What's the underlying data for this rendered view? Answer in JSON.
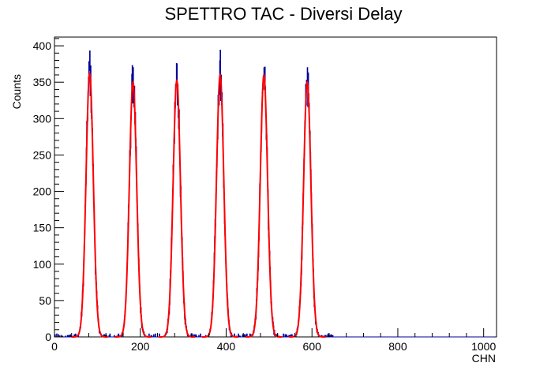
{
  "chart_data": {
    "type": "line",
    "title": "SPETTRO TAC - Diversi Delay",
    "xlabel": "CHN",
    "ylabel": "Counts",
    "xlim": [
      0,
      1030
    ],
    "ylim": [
      0,
      412
    ],
    "x_ticks": [
      0,
      200,
      400,
      600,
      800,
      1000
    ],
    "y_ticks": [
      0,
      50,
      100,
      150,
      200,
      250,
      300,
      350,
      400
    ],
    "grid": false,
    "legend": "none",
    "series": [
      {
        "style": "histogram",
        "color": "#000099",
        "peaks": [
          {
            "center": 82,
            "max": 393
          },
          {
            "center": 183,
            "max": 370
          },
          {
            "center": 285,
            "max": 375
          },
          {
            "center": 386,
            "max": 394
          },
          {
            "center": 488,
            "max": 370
          },
          {
            "center": 589,
            "max": 370
          }
        ]
      },
      {
        "style": "fit",
        "color": "#ff0000",
        "peaks": [
          {
            "center": 82,
            "amplitude": 362,
            "sigma": 8.5
          },
          {
            "center": 183,
            "amplitude": 350,
            "sigma": 8.5
          },
          {
            "center": 285,
            "amplitude": 352,
            "sigma": 8.5
          },
          {
            "center": 386,
            "amplitude": 360,
            "sigma": 8.5
          },
          {
            "center": 488,
            "amplitude": 360,
            "sigma": 8.5
          },
          {
            "center": 589,
            "amplitude": 350,
            "sigma": 8.5
          }
        ]
      }
    ]
  }
}
